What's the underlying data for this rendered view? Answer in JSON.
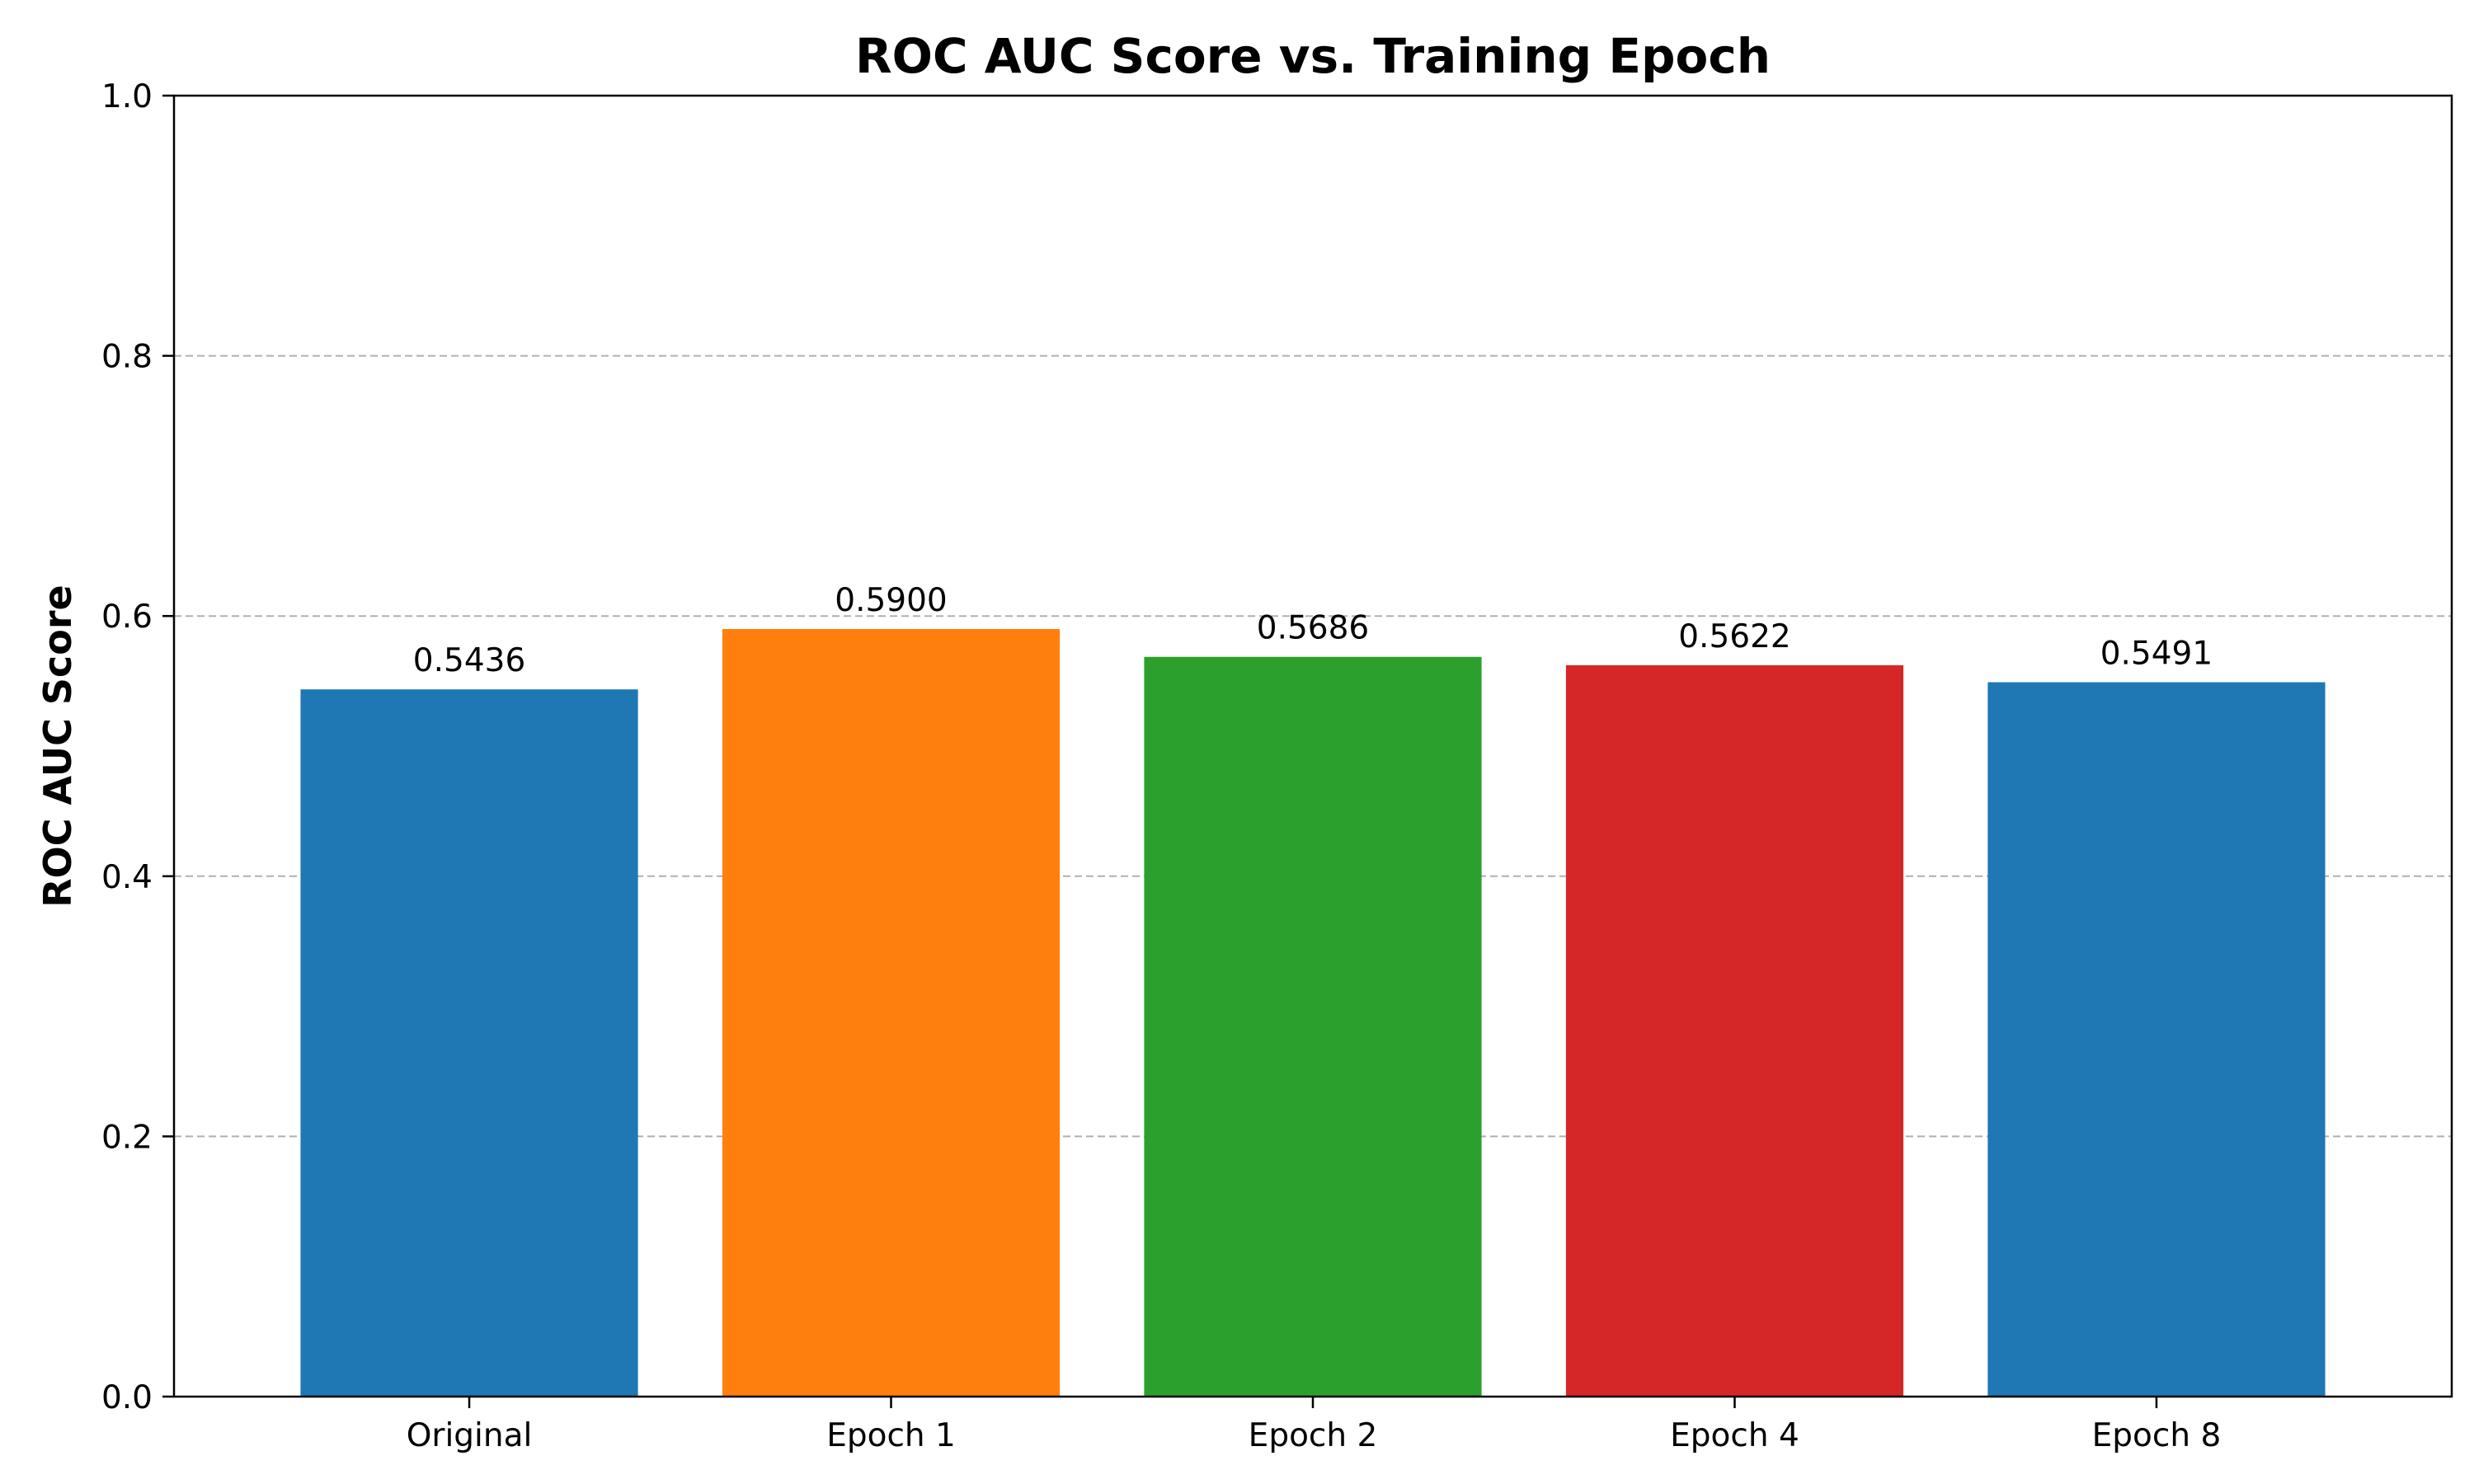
{
  "chart_data": {
    "type": "bar",
    "title": "ROC AUC Score vs. Training Epoch",
    "xlabel": "",
    "ylabel": "ROC AUC Score",
    "categories": [
      "Original",
      "Epoch 1",
      "Epoch 2",
      "Epoch 4",
      "Epoch 8"
    ],
    "values": [
      0.5436,
      0.59,
      0.5686,
      0.5622,
      0.5491
    ],
    "value_labels": [
      "0.5436",
      "0.5900",
      "0.5686",
      "0.5622",
      "0.5491"
    ],
    "colors": [
      "#1f77b4",
      "#ff7f0e",
      "#2ca02c",
      "#d62728",
      "#1f77b4"
    ],
    "ylim": [
      0,
      1.0
    ],
    "yticks": [
      0.0,
      0.2,
      0.4,
      0.6,
      0.8,
      1.0
    ],
    "ytick_labels": [
      "0.0",
      "0.2",
      "0.4",
      "0.6",
      "0.8",
      "1.0"
    ],
    "grid": "y-dashed",
    "grid_color": "#b0b0b0",
    "legend": "none"
  }
}
